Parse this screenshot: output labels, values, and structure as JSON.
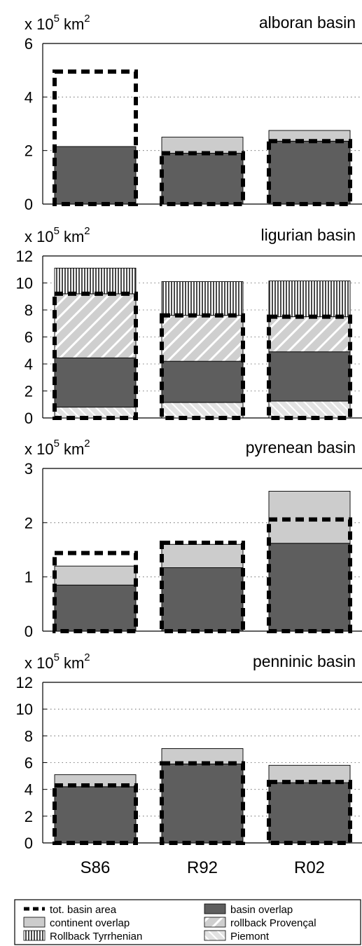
{
  "colors": {
    "basin_overlap": "#5e5e5e",
    "continent_overlap": "#cccccc",
    "rollback_provencal": "#cfcfcf",
    "rollback_tyrrhenian": "#7a7a7a",
    "piemont": "#d4d4d4",
    "tot_basin_area": "#000000"
  },
  "legend": {
    "tot_basin_area": "tot. basin area",
    "basin_overlap": "basin overlap",
    "continent_overlap": "continent overlap",
    "rollback_provencal": "rollback Provençal",
    "rollback_tyrrhenian": "Rollback Tyrrhenian",
    "piemont": "Piemont"
  },
  "chart_data": [
    {
      "type": "bar",
      "title": "alboran basin",
      "unit": {
        "base": "x 10",
        "exp": "5",
        "name": "km",
        "name_exp": "2"
      },
      "categories": [
        "S86",
        "R92",
        "R02"
      ],
      "ylim": [
        0,
        6
      ],
      "yticks": [
        "0",
        "2",
        "4",
        "6"
      ],
      "stack_series": [
        {
          "key": "basin_overlap",
          "name": "basin overlap",
          "values": [
            2.15,
            1.9,
            2.35
          ]
        },
        {
          "key": "continent_overlap",
          "name": "continent overlap",
          "values": [
            0,
            0.6,
            0.4
          ]
        }
      ],
      "tot_basin_area": [
        4.95,
        1.9,
        2.35
      ],
      "grid": "dotted"
    },
    {
      "type": "bar",
      "title": "ligurian basin",
      "unit": {
        "base": "x 10",
        "exp": "5",
        "name": "km",
        "name_exp": "2"
      },
      "categories": [
        "S86",
        "R92",
        "R02"
      ],
      "ylim": [
        0,
        12
      ],
      "yticks": [
        "0",
        "2",
        "4",
        "6",
        "8",
        "10",
        "12"
      ],
      "stack_series": [
        {
          "key": "piemont",
          "name": "Piemont",
          "values": [
            0.8,
            1.15,
            1.25
          ]
        },
        {
          "key": "basin_overlap",
          "name": "basin overlap",
          "values": [
            3.65,
            3.05,
            3.65
          ]
        },
        {
          "key": "rollback_provencal",
          "name": "rollback Provençal",
          "values": [
            4.75,
            3.4,
            2.6
          ]
        },
        {
          "key": "rollback_tyrrhenian",
          "name": "Rollback Tyrrhenian",
          "values": [
            1.9,
            2.5,
            2.65
          ]
        }
      ],
      "tot_basin_area": [
        9.2,
        7.6,
        7.5
      ],
      "grid": "dotted"
    },
    {
      "type": "bar",
      "title": "pyrenean basin",
      "unit": {
        "base": "x 10",
        "exp": "5",
        "name": "km",
        "name_exp": "2"
      },
      "categories": [
        "S86",
        "R92",
        "R02"
      ],
      "ylim": [
        0,
        3
      ],
      "yticks": [
        "0",
        "1",
        "2",
        "3"
      ],
      "stack_series": [
        {
          "key": "basin_overlap",
          "name": "basin overlap",
          "values": [
            0.85,
            1.17,
            1.62
          ]
        },
        {
          "key": "continent_overlap",
          "name": "continent overlap",
          "values": [
            0.35,
            0.43,
            0.96
          ]
        }
      ],
      "tot_basin_area": [
        1.44,
        1.63,
        2.06
      ],
      "grid": "dotted"
    },
    {
      "type": "bar",
      "title": "penninic basin",
      "unit": {
        "base": "x 10",
        "exp": "5",
        "name": "km",
        "name_exp": "2"
      },
      "categories": [
        "S86",
        "R92",
        "R02"
      ],
      "ylim": [
        0,
        12
      ],
      "yticks": [
        "0",
        "2",
        "4",
        "6",
        "8",
        "10",
        "12"
      ],
      "stack_series": [
        {
          "key": "basin_overlap",
          "name": "basin overlap",
          "values": [
            4.2,
            5.9,
            4.5
          ]
        },
        {
          "key": "continent_overlap",
          "name": "continent overlap",
          "values": [
            0.9,
            1.15,
            1.3
          ]
        }
      ],
      "tot_basin_area": [
        4.3,
        5.95,
        4.55
      ],
      "grid": "dotted"
    }
  ]
}
